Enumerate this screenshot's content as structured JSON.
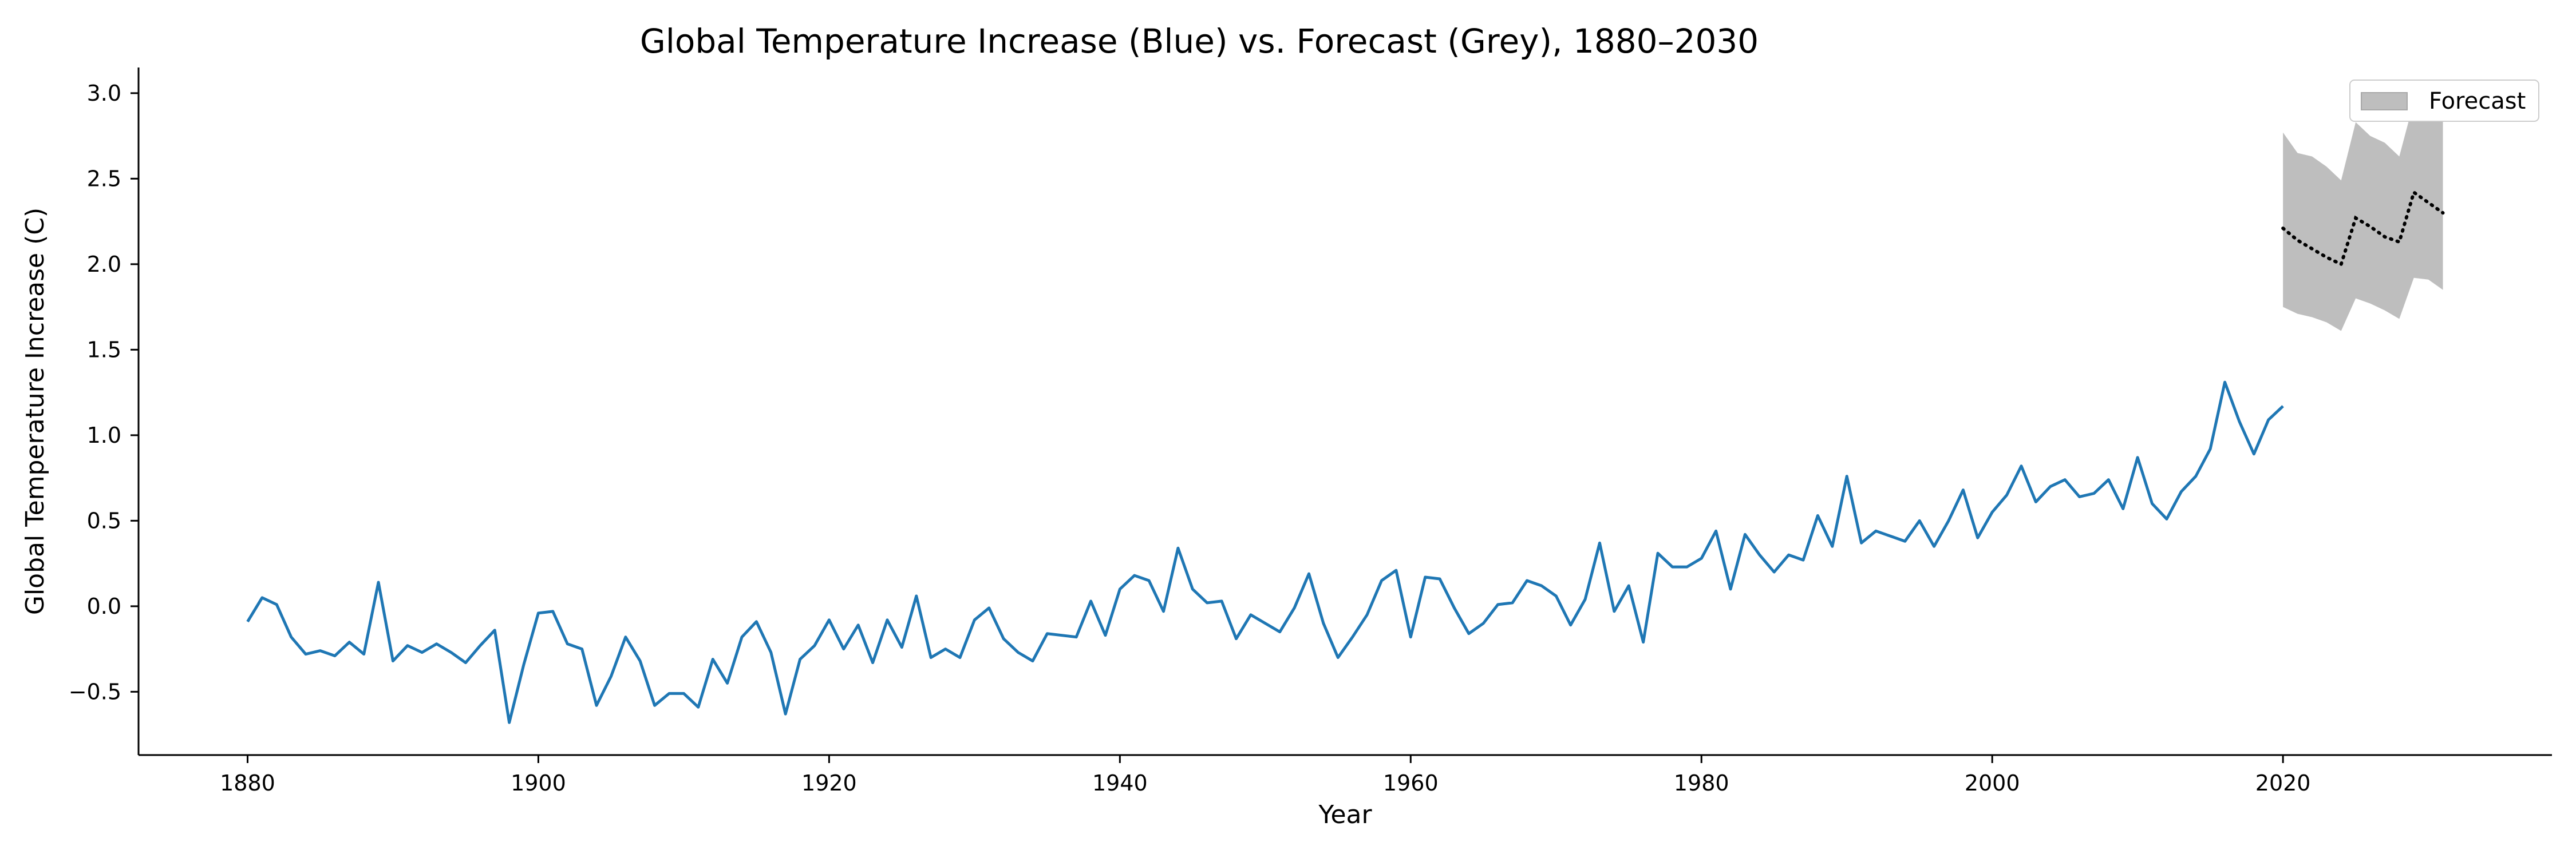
{
  "chart_data": {
    "type": "line",
    "title": "Global Temperature Increase (Blue) vs. Forecast (Grey), 1880–2030",
    "xlabel": "Year",
    "ylabel": "Global Temperature Increase (C)",
    "xlim": [
      1872.5,
      2038.5
    ],
    "ylim": [
      -0.87,
      3.15
    ],
    "xticks": [
      1880,
      1900,
      1920,
      1940,
      1960,
      1980,
      2000,
      2020
    ],
    "yticks": [
      -0.5,
      0.0,
      0.5,
      1.0,
      1.5,
      2.0,
      2.5,
      3.0
    ],
    "ytick_labels": [
      "−0.5",
      "0.0",
      "0.5",
      "1.0",
      "1.5",
      "2.0",
      "2.5",
      "3.0"
    ],
    "grid": false,
    "legend": {
      "placement": "top-right",
      "entries": [
        "Forecast"
      ]
    },
    "colors": {
      "observed": "#1f77b4",
      "forecast_line": "#000000",
      "forecast_band": "#bebebe",
      "axes": "#000000"
    },
    "series": [
      {
        "x": [
          1880,
          1881,
          1882,
          1883,
          1884,
          1885,
          1886,
          1887,
          1888,
          1889,
          1890,
          1891,
          1892,
          1893,
          1894,
          1895,
          1896,
          1897,
          1898,
          1899,
          1900,
          1901,
          1902,
          1903,
          1904,
          1905,
          1906,
          1907,
          1908,
          1909,
          1910,
          1911,
          1912,
          1913,
          1914,
          1915,
          1916,
          1917,
          1918,
          1919,
          1920,
          1921,
          1922,
          1923,
          1924,
          1925,
          1926,
          1927,
          1928,
          1929,
          1930,
          1931,
          1932,
          1933,
          1934,
          1935,
          1936,
          1937,
          1938,
          1939,
          1940,
          1941,
          1942,
          1943,
          1944,
          1945,
          1946,
          1947,
          1948,
          1949,
          1950,
          1951,
          1952,
          1953,
          1954,
          1955,
          1956,
          1957,
          1958,
          1959,
          1960,
          1961,
          1962,
          1963,
          1964,
          1965,
          1966,
          1967,
          1968,
          1969,
          1970,
          1971,
          1972,
          1973,
          1974,
          1975,
          1976,
          1977,
          1978,
          1979,
          1980,
          1981,
          1982,
          1983,
          1984,
          1985,
          1986,
          1987,
          1988,
          1989,
          1990,
          1991,
          1992,
          1993,
          1994,
          1995,
          1996,
          1997,
          1998,
          1999,
          2000,
          2001,
          2002,
          2003,
          2004,
          2005,
          2006,
          2007,
          2008,
          2009,
          2010,
          2011,
          2012,
          2013,
          2014,
          2015,
          2016,
          2017,
          2018,
          2019,
          2020
        ],
        "values": [
          -0.09,
          0.05,
          0.01,
          -0.18,
          -0.28,
          -0.26,
          -0.29,
          -0.21,
          -0.28,
          0.14,
          -0.32,
          -0.23,
          -0.27,
          -0.22,
          -0.27,
          -0.33,
          -0.23,
          -0.14,
          -0.68,
          -0.34,
          -0.04,
          -0.03,
          -0.22,
          -0.25,
          -0.58,
          -0.41,
          -0.18,
          -0.32,
          -0.58,
          -0.51,
          -0.51,
          -0.59,
          -0.31,
          -0.45,
          -0.18,
          -0.09,
          -0.27,
          -0.63,
          -0.31,
          -0.23,
          -0.08,
          -0.25,
          -0.11,
          -0.33,
          -0.08,
          -0.24,
          0.06,
          -0.3,
          -0.25,
          -0.3,
          -0.08,
          -0.01,
          -0.19,
          -0.27,
          -0.32,
          -0.16,
          -0.17,
          -0.18,
          0.03,
          -0.17,
          0.1,
          0.18,
          0.15,
          -0.03,
          0.34,
          0.1,
          0.02,
          0.03,
          -0.19,
          -0.05,
          -0.1,
          -0.15,
          -0.01,
          0.19,
          -0.1,
          -0.3,
          -0.18,
          -0.05,
          0.15,
          0.21,
          -0.18,
          0.17,
          0.16,
          -0.01,
          -0.16,
          -0.1,
          0.01,
          0.02,
          0.15,
          0.12,
          0.06,
          -0.11,
          0.04,
          0.37,
          -0.03,
          0.12,
          -0.21,
          0.31,
          0.23,
          0.23,
          0.28,
          0.44,
          0.1,
          0.42,
          0.3,
          0.2,
          0.3,
          0.27,
          0.53,
          0.35,
          0.76,
          0.37,
          0.44,
          0.41,
          0.38,
          0.5,
          0.35,
          0.5,
          0.68,
          0.4,
          0.55,
          0.65,
          0.82,
          0.61,
          0.7,
          0.74,
          0.64,
          0.66,
          0.74,
          0.57,
          0.87,
          0.6,
          0.51,
          0.67,
          0.76,
          0.92,
          1.31,
          1.08,
          0.89,
          1.09,
          1.17
        ]
      },
      {
        "name": "Forecast",
        "x": [
          2020,
          2021,
          2022,
          2023,
          2024,
          2025,
          2026,
          2027,
          2028,
          2029,
          2030,
          2031
        ],
        "values": [
          2.21,
          2.14,
          2.09,
          2.04,
          2.0,
          2.27,
          2.22,
          2.16,
          2.13,
          2.42,
          2.36,
          2.3
        ],
        "upper": [
          2.77,
          2.65,
          2.63,
          2.57,
          2.49,
          2.83,
          2.75,
          2.71,
          2.63,
          2.95,
          2.95,
          2.95
        ],
        "lower": [
          1.75,
          1.71,
          1.69,
          1.66,
          1.61,
          1.8,
          1.77,
          1.73,
          1.68,
          1.92,
          1.91,
          1.85
        ]
      }
    ]
  }
}
